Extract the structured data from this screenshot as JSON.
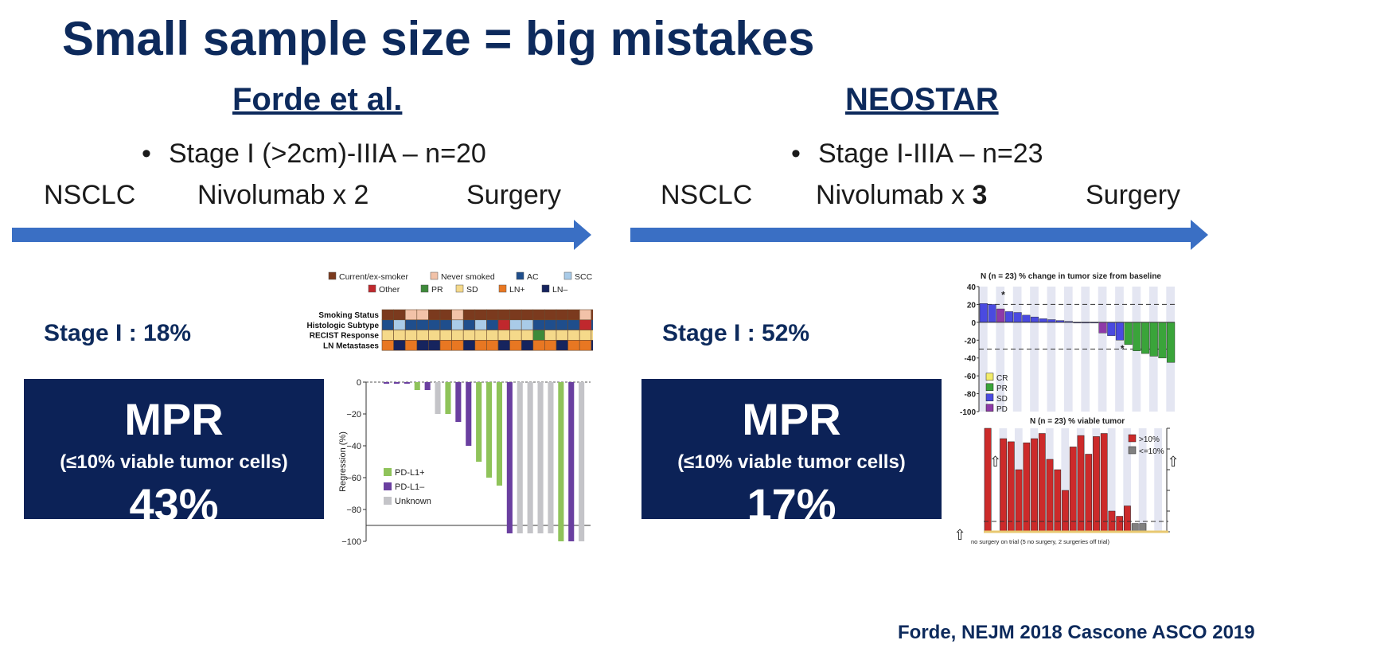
{
  "title": "Small sample size = big mistakes",
  "colors": {
    "navy": "#0d2a5c",
    "arrow": "#3a6fc4",
    "mpr_box": "#0c2257"
  },
  "left": {
    "study": "Forde et al.",
    "bullet": "Stage I (>2cm)-IIIA – n=20",
    "flow": {
      "start": "NSCLC",
      "middle": "Nivolumab x 2",
      "end": "Surgery"
    },
    "stage_label": "Stage I : 18%",
    "mpr": {
      "title": "MPR",
      "subtitle": "(≤10% viable tumor cells)",
      "value": "43%"
    }
  },
  "right": {
    "study": "NEOSTAR",
    "bullet": "Stage I-IIIA – n=23",
    "flow": {
      "start": "NSCLC",
      "middle": "Nivolumab x ",
      "middle_bold": "3",
      "end": "Surgery"
    },
    "stage_label": "Stage I : 52%",
    "mpr": {
      "title": "MPR",
      "subtitle": "(≤10% viable tumor cells)",
      "value": "17%"
    }
  },
  "citation": "Forde, NEJM 2018 Cascone ASCO 2019",
  "chart_data": [
    {
      "type": "heatmap",
      "legend": [
        {
          "label": "Current/ex-smoker",
          "color": "#7b3a1e"
        },
        {
          "label": "Never smoked",
          "color": "#f2c2a8"
        },
        {
          "label": "AC",
          "color": "#1f4e8c"
        },
        {
          "label": "SCC",
          "color": "#a9cbe8"
        },
        {
          "label": "Other",
          "color": "#c0282d"
        },
        {
          "label": "PR",
          "color": "#3e8a3a"
        },
        {
          "label": "SD",
          "color": "#f5d98a"
        },
        {
          "label": "LN+",
          "color": "#e87722"
        },
        {
          "label": "LN–",
          "color": "#16245e"
        }
      ],
      "rows": [
        "Smoking Status",
        "Histologic Subtype",
        "RECIST Response",
        "LN Metastases"
      ],
      "cells": [
        [
          "Current/ex-smoker",
          "Current/ex-smoker",
          "Never smoked",
          "Never smoked",
          "Current/ex-smoker",
          "Current/ex-smoker",
          "Never smoked",
          "Current/ex-smoker",
          "Current/ex-smoker",
          "Current/ex-smoker",
          "Current/ex-smoker",
          "Current/ex-smoker",
          "Current/ex-smoker",
          "Current/ex-smoker",
          "Current/ex-smoker",
          "Current/ex-smoker",
          "Current/ex-smoker",
          "Never smoked",
          "Current/ex-smoker",
          "Current/ex-smoker"
        ],
        [
          "AC",
          "SCC",
          "AC",
          "AC",
          "AC",
          "AC",
          "SCC",
          "AC",
          "SCC",
          "AC",
          "Other",
          "SCC",
          "SCC",
          "AC",
          "AC",
          "AC",
          "AC",
          "Other",
          "AC",
          "SCC"
        ],
        [
          "SD",
          "SD",
          "SD",
          "SD",
          "SD",
          "SD",
          "SD",
          "SD",
          "SD",
          "SD",
          "SD",
          "SD",
          "SD",
          "PR",
          "SD",
          "SD",
          "SD",
          "SD",
          "SD",
          "SD"
        ],
        [
          "LN+",
          "LN–",
          "LN+",
          "LN–",
          "LN–",
          "LN+",
          "LN+",
          "LN–",
          "LN+",
          "LN+",
          "LN–",
          "LN+",
          "LN–",
          "LN+",
          "LN+",
          "LN–",
          "LN+",
          "LN+",
          "LN–",
          "LN+"
        ]
      ]
    },
    {
      "type": "bar",
      "ylabel": "Regression (%)",
      "ylim": [
        -100,
        0
      ],
      "yticks": [
        0,
        -20,
        -40,
        -60,
        -80,
        -100
      ],
      "threshold": -90,
      "series_legend": [
        {
          "name": "PD-L1+",
          "color": "#8fc35a"
        },
        {
          "name": "PD-L1–",
          "color": "#6a3fa0"
        },
        {
          "name": "Unknown",
          "color": "#c4c4c8"
        }
      ],
      "bars": [
        {
          "value": -1,
          "group": "PD-L1–"
        },
        {
          "value": -1,
          "group": "PD-L1–"
        },
        {
          "value": -1,
          "group": "PD-L1–"
        },
        {
          "value": -5,
          "group": "PD-L1+"
        },
        {
          "value": -5,
          "group": "PD-L1–"
        },
        {
          "value": -20,
          "group": "Unknown"
        },
        {
          "value": -20,
          "group": "PD-L1+"
        },
        {
          "value": -25,
          "group": "PD-L1–"
        },
        {
          "value": -40,
          "group": "PD-L1–"
        },
        {
          "value": -50,
          "group": "PD-L1+"
        },
        {
          "value": -60,
          "group": "PD-L1+"
        },
        {
          "value": -65,
          "group": "PD-L1+"
        },
        {
          "value": -95,
          "group": "PD-L1–"
        },
        {
          "value": -95,
          "group": "Unknown"
        },
        {
          "value": -95,
          "group": "Unknown"
        },
        {
          "value": -95,
          "group": "Unknown"
        },
        {
          "value": -95,
          "group": "Unknown"
        },
        {
          "value": -100,
          "group": "PD-L1+"
        },
        {
          "value": -100,
          "group": "PD-L1–"
        },
        {
          "value": -100,
          "group": "Unknown"
        }
      ]
    },
    {
      "type": "bar",
      "title": "N (n = 23) % change in tumor size from baseline",
      "ylim": [
        -100,
        40
      ],
      "yticks": [
        40,
        20,
        0,
        -20,
        -40,
        -60,
        -80,
        -100
      ],
      "thresholds": [
        20,
        -30
      ],
      "legend": [
        {
          "name": "CR",
          "color": "#f2ec6a"
        },
        {
          "name": "PR",
          "color": "#3aa43a"
        },
        {
          "name": "SD",
          "color": "#4a4ae0"
        },
        {
          "name": "PD",
          "color": "#8e3aa8"
        }
      ],
      "bars": [
        {
          "value": 21,
          "group": "SD"
        },
        {
          "value": 20,
          "group": "SD"
        },
        {
          "value": 15,
          "group": "PD"
        },
        {
          "value": 12,
          "group": "SD"
        },
        {
          "value": 11,
          "group": "SD"
        },
        {
          "value": 8,
          "group": "SD"
        },
        {
          "value": 6,
          "group": "SD"
        },
        {
          "value": 4,
          "group": "SD"
        },
        {
          "value": 3,
          "group": "SD"
        },
        {
          "value": 2,
          "group": "SD"
        },
        {
          "value": 1,
          "group": "SD"
        },
        {
          "value": 0,
          "group": "SD"
        },
        {
          "value": 0,
          "group": "SD"
        },
        {
          "value": 0,
          "group": "SD"
        },
        {
          "value": -12,
          "group": "PD"
        },
        {
          "value": -15,
          "group": "SD"
        },
        {
          "value": -20,
          "group": "SD"
        },
        {
          "value": -25,
          "group": "PR"
        },
        {
          "value": -32,
          "group": "PR"
        },
        {
          "value": -35,
          "group": "PR"
        },
        {
          "value": -38,
          "group": "PR"
        },
        {
          "value": -40,
          "group": "PR"
        },
        {
          "value": -45,
          "group": "PR"
        }
      ],
      "annotations": [
        "*",
        "*"
      ]
    },
    {
      "type": "bar",
      "title": "N (n = 23) % viable tumor",
      "legend": [
        {
          "name": ">10%",
          "color": "#cc2a2a"
        },
        {
          "name": "<=10%",
          "color": "#808080"
        }
      ],
      "bars": [
        {
          "value": 100,
          "group": ">10%"
        },
        {
          "value": 0,
          "group": "none"
        },
        {
          "value": 90,
          "group": ">10%"
        },
        {
          "value": 87,
          "group": ">10%"
        },
        {
          "value": 60,
          "group": ">10%"
        },
        {
          "value": 86,
          "group": ">10%"
        },
        {
          "value": 90,
          "group": ">10%"
        },
        {
          "value": 95,
          "group": ">10%"
        },
        {
          "value": 70,
          "group": ">10%"
        },
        {
          "value": 60,
          "group": ">10%"
        },
        {
          "value": 40,
          "group": ">10%"
        },
        {
          "value": 82,
          "group": ">10%"
        },
        {
          "value": 93,
          "group": ">10%"
        },
        {
          "value": 75,
          "group": ">10%"
        },
        {
          "value": 92,
          "group": ">10%"
        },
        {
          "value": 95,
          "group": ">10%"
        },
        {
          "value": 20,
          "group": ">10%"
        },
        {
          "value": 15,
          "group": ">10%"
        },
        {
          "value": 25,
          "group": ">10%"
        },
        {
          "value": 8,
          "group": "<=10%"
        },
        {
          "value": 8,
          "group": "<=10%"
        },
        {
          "value": 0,
          "group": "none"
        },
        {
          "value": 0,
          "group": "none"
        }
      ],
      "footnote": "no surgery on trial (5 no surgery, 2 surgeries off trial)"
    }
  ]
}
